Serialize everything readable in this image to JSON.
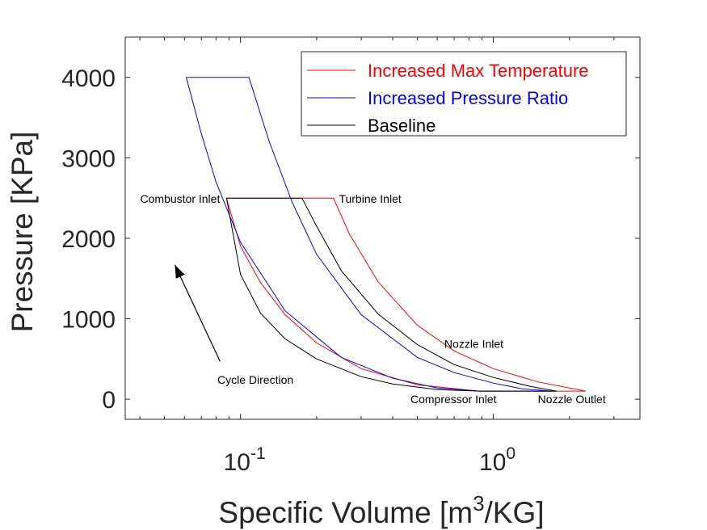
{
  "chart_data": {
    "type": "line",
    "title": "",
    "xlabel": "Specific Volume [m",
    "xlabel_sup": "3",
    "xlabel_tail": "/KG]",
    "ylabel": "Pressure [KPa]",
    "xscale": "log",
    "xlim": [
      0.035,
      3.8
    ],
    "ylim": [
      -250,
      4500
    ],
    "x_tick_labels": [
      {
        "value": 0.1,
        "base": "10",
        "exp": "-1"
      },
      {
        "value": 1,
        "base": "10",
        "exp": "0"
      }
    ],
    "y_ticks": [
      0,
      1000,
      2000,
      3000,
      4000
    ],
    "y_tick_labels": [
      "0",
      "1000",
      "2000",
      "3000",
      "4000"
    ],
    "grid": false,
    "legend_position": "top-right",
    "series": [
      {
        "name": "Increased Max Temperature",
        "color": "#ff0000",
        "points": [
          [
            0.088,
            2500
          ],
          [
            0.233,
            2500
          ],
          [
            0.27,
            2050
          ],
          [
            0.35,
            1460
          ],
          [
            0.5,
            920
          ],
          [
            0.7,
            600
          ],
          [
            1.0,
            380
          ],
          [
            1.5,
            215
          ],
          [
            2.32,
            100
          ],
          [
            1.9,
            100
          ],
          [
            1.5,
            100
          ],
          [
            1.2,
            100
          ],
          [
            0.95,
            100
          ],
          [
            0.88,
            100
          ],
          [
            0.5,
            180
          ],
          [
            0.3,
            380
          ],
          [
            0.2,
            700
          ],
          [
            0.15,
            1050
          ],
          [
            0.12,
            1450
          ],
          [
            0.1,
            1900
          ],
          [
            0.088,
            2500
          ]
        ]
      },
      {
        "name": "Increased Pressure Ratio",
        "color": "#0000ff",
        "points": [
          [
            0.061,
            4000
          ],
          [
            0.108,
            4000
          ],
          [
            0.13,
            3200
          ],
          [
            0.16,
            2450
          ],
          [
            0.2,
            1800
          ],
          [
            0.3,
            1050
          ],
          [
            0.5,
            520
          ],
          [
            0.7,
            330
          ],
          [
            1.0,
            200
          ],
          [
            1.3,
            130
          ],
          [
            1.7,
            100
          ],
          [
            1.2,
            100
          ],
          [
            0.88,
            100
          ],
          [
            0.6,
            140
          ],
          [
            0.4,
            260
          ],
          [
            0.25,
            520
          ],
          [
            0.15,
            1100
          ],
          [
            0.1,
            1950
          ],
          [
            0.08,
            2700
          ],
          [
            0.07,
            3300
          ],
          [
            0.061,
            4000
          ]
        ]
      },
      {
        "name": "Baseline",
        "color": "#000000",
        "points": [
          [
            0.088,
            2500
          ],
          [
            0.175,
            2500
          ],
          [
            0.2,
            2150
          ],
          [
            0.25,
            1600
          ],
          [
            0.35,
            1060
          ],
          [
            0.5,
            680
          ],
          [
            0.7,
            430
          ],
          [
            1.0,
            270
          ],
          [
            1.4,
            160
          ],
          [
            1.78,
            100
          ],
          [
            1.3,
            100
          ],
          [
            0.88,
            100
          ],
          [
            0.6,
            120
          ],
          [
            0.4,
            190
          ],
          [
            0.3,
            280
          ],
          [
            0.2,
            500
          ],
          [
            0.15,
            750
          ],
          [
            0.12,
            1070
          ],
          [
            0.1,
            1550
          ],
          [
            0.088,
            2500
          ]
        ]
      }
    ],
    "annotations": [
      {
        "text": "Combustor Inlet",
        "x": 0.083,
        "y": 2490,
        "anchor": "end"
      },
      {
        "text": "Turbine Inlet",
        "x": 0.245,
        "y": 2490,
        "anchor": "start"
      },
      {
        "text": "Nozzle Inlet",
        "x": 0.64,
        "y": 690,
        "anchor": "start"
      },
      {
        "text": "Cycle Direction",
        "x": 0.081,
        "y": 240,
        "anchor": "start"
      },
      {
        "text": "Compressor Inlet",
        "x": 0.47,
        "y": 0,
        "anchor": "start"
      },
      {
        "text": "Nozzle Outlet",
        "x": 1.5,
        "y": 0,
        "anchor": "start"
      }
    ],
    "arrow": {
      "from": [
        0.083,
        470
      ],
      "to": [
        0.055,
        1670
      ]
    }
  }
}
